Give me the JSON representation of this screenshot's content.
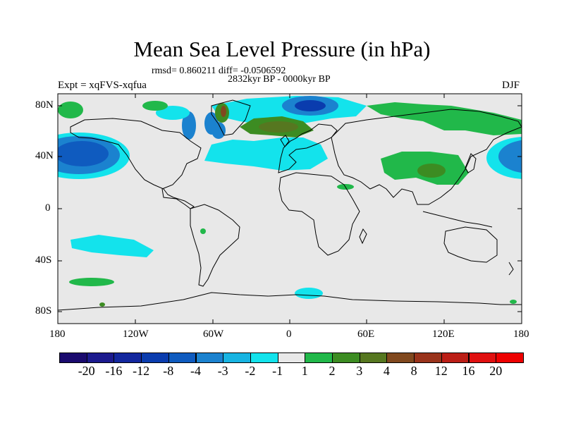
{
  "title": "Mean Sea Level Pressure (in hPa)",
  "stats": "rmsd= 0.860211 diff= -0.0506592",
  "period": "2832kyr BP - 0000kyr BP",
  "experiment": "Expt = xqFVS-xqfua",
  "season": "DJF",
  "lat_labels": [
    "80N",
    "40N",
    "0",
    "40S",
    "80S"
  ],
  "lon_labels": [
    "180",
    "120W",
    "60W",
    "0",
    "60E",
    "120E",
    "180"
  ],
  "colorbar": {
    "labels": [
      "-20",
      "-16",
      "-12",
      "-8",
      "-4",
      "-3",
      "-2",
      "-1",
      "1",
      "2",
      "3",
      "4",
      "8",
      "12",
      "16",
      "20"
    ],
    "colors": [
      "#1a0a6e",
      "#1c1a8e",
      "#13279e",
      "#0a3cae",
      "#0f5bbf",
      "#1b82cf",
      "#17b4e2",
      "#13e3ec",
      "#e8e8e8",
      "#21b84a",
      "#3c8c22",
      "#567720",
      "#80481e",
      "#99331b",
      "#bb1e16",
      "#e01010",
      "#ee0000"
    ]
  }
}
